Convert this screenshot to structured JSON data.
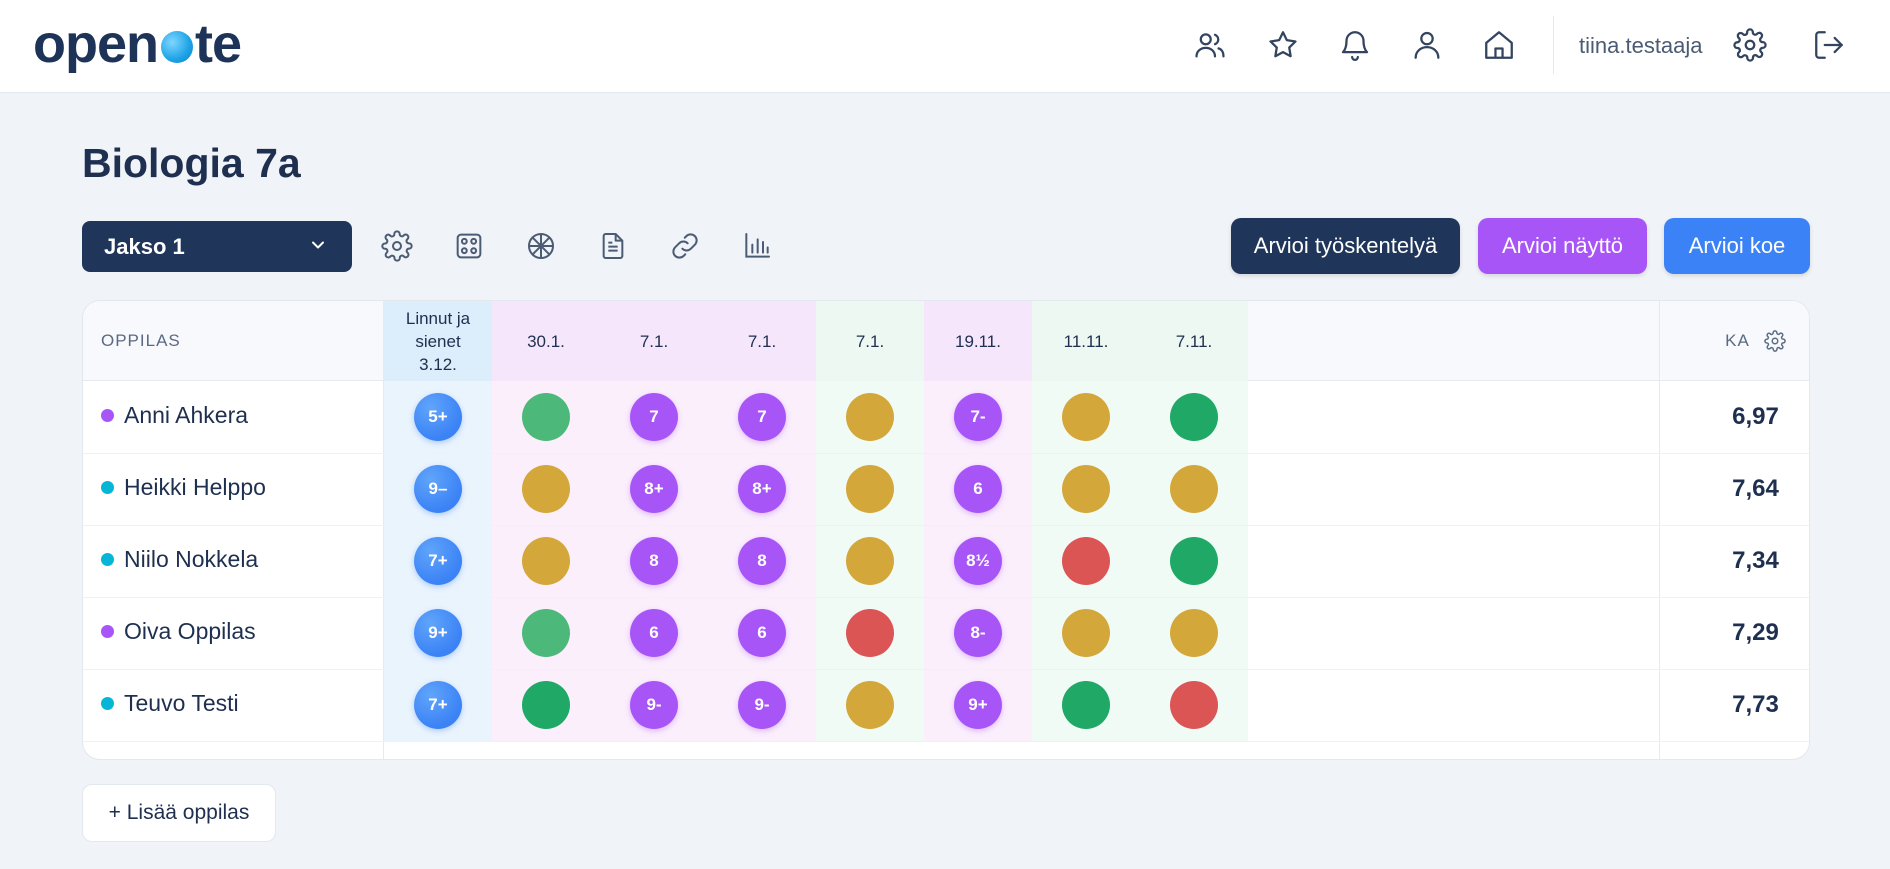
{
  "app": {
    "logo_left": "open",
    "logo_right": "te",
    "username": "tiina.testaaja"
  },
  "page": {
    "title": "Biologia 7a"
  },
  "toolbar": {
    "period": "Jakso 1",
    "buttons": {
      "work": "Arvioi työskentelyä",
      "show": "Arvioi näyttö",
      "exam": "Arvioi koe"
    }
  },
  "table": {
    "student_header": "OPPILAS",
    "average_header": "KA",
    "columns": [
      {
        "label": "Linnut ja sienet 3.12.",
        "kind": "exam",
        "bg": "#eaf4fd"
      },
      {
        "label": "30.1.",
        "kind": "show",
        "bg": "#fbeffc"
      },
      {
        "label": "7.1.",
        "kind": "show",
        "bg": "#fbeffc"
      },
      {
        "label": "7.1.",
        "kind": "show",
        "bg": "#fbeffc"
      },
      {
        "label": "7.1.",
        "kind": "work",
        "bg": "#f1fbf6"
      },
      {
        "label": "19.11.",
        "kind": "show",
        "bg": "#fbeffc"
      },
      {
        "label": "11.11.",
        "kind": "work",
        "bg": "#f1fbf6"
      },
      {
        "label": "7.11.",
        "kind": "work",
        "bg": "#f1fbf6"
      }
    ],
    "rows": [
      {
        "name": "Anni Ahkera",
        "dot": "#a855f7",
        "average": "6,97",
        "cells": [
          {
            "t": "grade",
            "v": "5+",
            "c": "blue"
          },
          {
            "t": "color",
            "c": "#4cb87a"
          },
          {
            "t": "grade",
            "v": "7",
            "c": "purple"
          },
          {
            "t": "grade",
            "v": "7",
            "c": "purple"
          },
          {
            "t": "color",
            "c": "#d4a73a"
          },
          {
            "t": "grade",
            "v": "7-",
            "c": "purple"
          },
          {
            "t": "color",
            "c": "#d4a73a"
          },
          {
            "t": "color",
            "c": "#1fa866"
          }
        ]
      },
      {
        "name": "Heikki Helppo",
        "dot": "#06b6d4",
        "average": "7,64",
        "cells": [
          {
            "t": "grade",
            "v": "9–",
            "c": "blue"
          },
          {
            "t": "color",
            "c": "#d4a73a"
          },
          {
            "t": "grade",
            "v": "8+",
            "c": "purple"
          },
          {
            "t": "grade",
            "v": "8+",
            "c": "purple"
          },
          {
            "t": "color",
            "c": "#d4a73a"
          },
          {
            "t": "grade",
            "v": "6",
            "c": "purple"
          },
          {
            "t": "color",
            "c": "#d4a73a"
          },
          {
            "t": "color",
            "c": "#d4a73a"
          }
        ]
      },
      {
        "name": "Niilo Nokkela",
        "dot": "#06b6d4",
        "average": "7,34",
        "cells": [
          {
            "t": "grade",
            "v": "7+",
            "c": "blue"
          },
          {
            "t": "color",
            "c": "#d4a73a"
          },
          {
            "t": "grade",
            "v": "8",
            "c": "purple"
          },
          {
            "t": "grade",
            "v": "8",
            "c": "purple"
          },
          {
            "t": "color",
            "c": "#d4a73a"
          },
          {
            "t": "grade",
            "v": "8½",
            "c": "purple"
          },
          {
            "t": "color",
            "c": "#dc5555"
          },
          {
            "t": "color",
            "c": "#1fa866"
          }
        ]
      },
      {
        "name": "Oiva Oppilas",
        "dot": "#a855f7",
        "average": "7,29",
        "cells": [
          {
            "t": "grade",
            "v": "9+",
            "c": "blue"
          },
          {
            "t": "color",
            "c": "#4cb87a"
          },
          {
            "t": "grade",
            "v": "6",
            "c": "purple"
          },
          {
            "t": "grade",
            "v": "6",
            "c": "purple"
          },
          {
            "t": "color",
            "c": "#dc5555"
          },
          {
            "t": "grade",
            "v": "8-",
            "c": "purple"
          },
          {
            "t": "color",
            "c": "#d4a73a"
          },
          {
            "t": "color",
            "c": "#d4a73a"
          }
        ]
      },
      {
        "name": "Teuvo Testi",
        "dot": "#06b6d4",
        "average": "7,73",
        "cells": [
          {
            "t": "grade",
            "v": "7+",
            "c": "blue"
          },
          {
            "t": "color",
            "c": "#1fa866"
          },
          {
            "t": "grade",
            "v": "9-",
            "c": "purple"
          },
          {
            "t": "grade",
            "v": "9-",
            "c": "purple"
          },
          {
            "t": "color",
            "c": "#d4a73a"
          },
          {
            "t": "grade",
            "v": "9+",
            "c": "purple"
          },
          {
            "t": "color",
            "c": "#1fa866"
          },
          {
            "t": "color",
            "c": "#dc5555"
          }
        ]
      }
    ]
  },
  "footer": {
    "add_student": "+ Lisää oppilas"
  },
  "icons": [
    "users-icon",
    "star-icon",
    "bell-icon",
    "user-icon",
    "home-icon",
    "settings-icon",
    "logout-icon",
    "gear-icon",
    "dice-icon",
    "aperture-icon",
    "document-icon",
    "link-icon",
    "bar-chart-icon",
    "chevron-down-icon"
  ]
}
